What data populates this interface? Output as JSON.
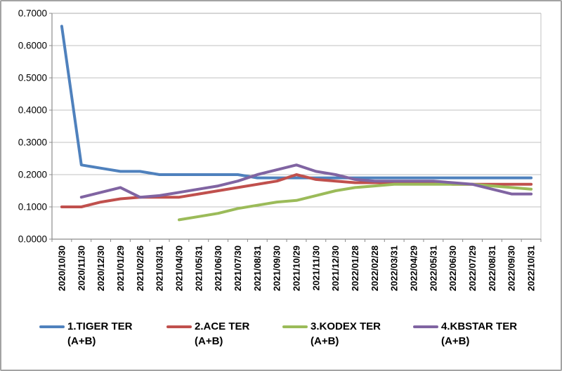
{
  "chart_data": {
    "type": "line",
    "title": "",
    "xlabel": "",
    "ylabel": "",
    "ylim": [
      0,
      0.7
    ],
    "grid": true,
    "legend_position": "bottom",
    "y_tick_labels": [
      "0.0000",
      "0.1000",
      "0.2000",
      "0.3000",
      "0.4000",
      "0.5000",
      "0.6000",
      "0.7000"
    ],
    "categories": [
      "2020/10/30",
      "2020/11/30",
      "2020/12/30",
      "2021/01/29",
      "2021/02/26",
      "2021/03/31",
      "2021/04/30",
      "2021/05/31",
      "2021/06/30",
      "2021/07/30",
      "2021/08/31",
      "2021/09/30",
      "2021/10/29",
      "2021/11/30",
      "2021/12/30",
      "2022/01/28",
      "2022/02/28",
      "2022/03/31",
      "2022/04/29",
      "2022/05/31",
      "2022/06/30",
      "2022/07/29",
      "2022/08/31",
      "2022/09/30",
      "2022/10/31"
    ],
    "series": [
      {
        "key": "tiger",
        "name": "1.TIGER TER (A+B)",
        "legend_lines": [
          "1.TIGER TER",
          "(A+B)"
        ],
        "color": "#4F81BD",
        "values": [
          0.66,
          0.23,
          0.22,
          0.21,
          0.21,
          0.2,
          0.2,
          0.2,
          0.2,
          0.2,
          0.19,
          0.19,
          0.19,
          0.19,
          0.19,
          0.19,
          0.19,
          0.19,
          0.19,
          0.19,
          0.19,
          0.19,
          0.19,
          0.19,
          0.19
        ]
      },
      {
        "key": "ace",
        "name": "2.ACE TER (A+B)",
        "legend_lines": [
          "2.ACE TER",
          "(A+B)"
        ],
        "color": "#C0504D",
        "values": [
          0.1,
          0.1,
          0.115,
          0.125,
          0.13,
          0.13,
          0.13,
          0.14,
          0.15,
          0.16,
          0.17,
          0.18,
          0.2,
          0.185,
          0.18,
          0.175,
          0.175,
          0.175,
          0.175,
          0.175,
          0.17,
          0.17,
          0.17,
          0.17,
          0.17
        ]
      },
      {
        "key": "kodex",
        "name": "3.KODEX TER (A+B)",
        "legend_lines": [
          "3.KODEX TER",
          "(A+B)"
        ],
        "color": "#9BBB59",
        "values": [
          null,
          null,
          null,
          null,
          null,
          null,
          0.06,
          0.07,
          0.08,
          0.095,
          0.105,
          0.115,
          0.12,
          0.135,
          0.15,
          0.16,
          0.165,
          0.17,
          0.17,
          0.17,
          0.17,
          0.17,
          0.165,
          0.16,
          0.155
        ]
      },
      {
        "key": "kbstar",
        "name": "4.KBSTAR TER (A+B)",
        "legend_lines": [
          "4.KBSTAR TER",
          "(A+B)"
        ],
        "color": "#8064A2",
        "values": [
          null,
          0.13,
          0.145,
          0.16,
          0.13,
          0.135,
          0.145,
          0.155,
          0.165,
          0.18,
          0.2,
          0.215,
          0.23,
          0.21,
          0.2,
          0.185,
          0.18,
          0.18,
          0.18,
          0.18,
          0.175,
          0.17,
          0.155,
          0.14,
          0.14
        ]
      }
    ]
  },
  "colors": {
    "background": "#FFFFFF",
    "frame_border": "#A3A3A3",
    "gridline": "#C0C0C0",
    "axis": "#8C8C8C",
    "text": "#000000"
  }
}
